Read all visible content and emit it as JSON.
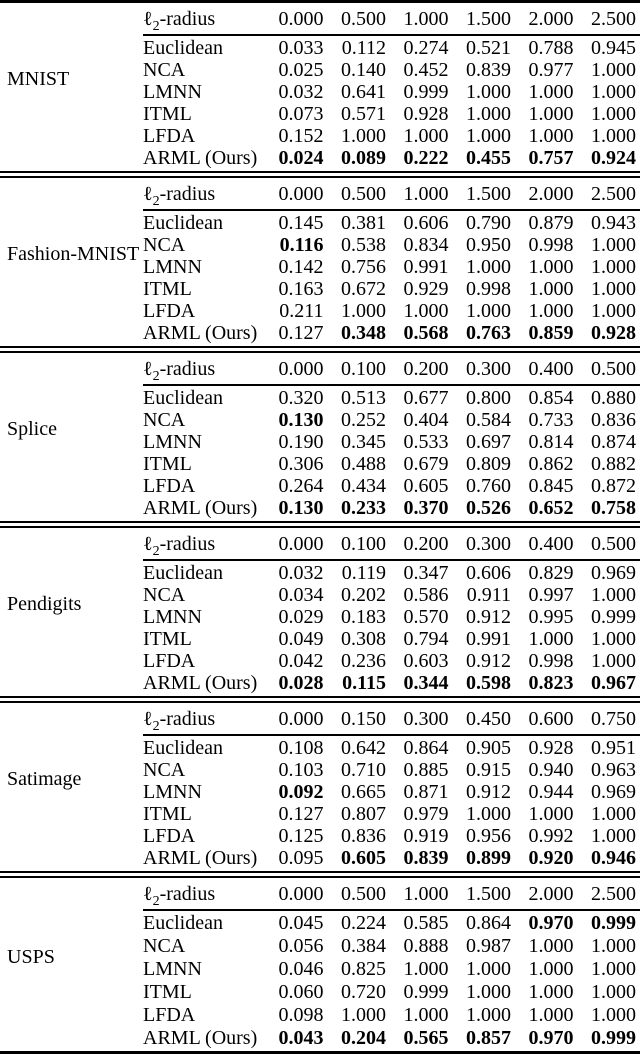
{
  "table": {
    "radius_label": {
      "script_l": "ℓ",
      "subscript": "2",
      "suffix": "-radius"
    },
    "blocks": [
      {
        "dataset": "MNIST",
        "radii": [
          "0.000",
          "0.500",
          "1.000",
          "1.500",
          "2.000",
          "2.500"
        ],
        "rows": [
          {
            "method": "Euclidean",
            "values": [
              "0.033",
              "0.112",
              "0.274",
              "0.521",
              "0.788",
              "0.945"
            ],
            "bold": [
              false,
              false,
              false,
              false,
              false,
              false
            ]
          },
          {
            "method": "NCA",
            "values": [
              "0.025",
              "0.140",
              "0.452",
              "0.839",
              "0.977",
              "1.000"
            ],
            "bold": [
              false,
              false,
              false,
              false,
              false,
              false
            ]
          },
          {
            "method": "LMNN",
            "values": [
              "0.032",
              "0.641",
              "0.999",
              "1.000",
              "1.000",
              "1.000"
            ],
            "bold": [
              false,
              false,
              false,
              false,
              false,
              false
            ]
          },
          {
            "method": "ITML",
            "values": [
              "0.073",
              "0.571",
              "0.928",
              "1.000",
              "1.000",
              "1.000"
            ],
            "bold": [
              false,
              false,
              false,
              false,
              false,
              false
            ]
          },
          {
            "method": "LFDA",
            "values": [
              "0.152",
              "1.000",
              "1.000",
              "1.000",
              "1.000",
              "1.000"
            ],
            "bold": [
              false,
              false,
              false,
              false,
              false,
              false
            ]
          },
          {
            "method": "ARML (Ours)",
            "values": [
              "0.024",
              "0.089",
              "0.222",
              "0.455",
              "0.757",
              "0.924"
            ],
            "bold": [
              true,
              true,
              true,
              true,
              true,
              true
            ]
          }
        ]
      },
      {
        "dataset": "Fashion-MNIST",
        "radii": [
          "0.000",
          "0.500",
          "1.000",
          "1.500",
          "2.000",
          "2.500"
        ],
        "rows": [
          {
            "method": "Euclidean",
            "values": [
              "0.145",
              "0.381",
              "0.606",
              "0.790",
              "0.879",
              "0.943"
            ],
            "bold": [
              false,
              false,
              false,
              false,
              false,
              false
            ]
          },
          {
            "method": "NCA",
            "values": [
              "0.116",
              "0.538",
              "0.834",
              "0.950",
              "0.998",
              "1.000"
            ],
            "bold": [
              true,
              false,
              false,
              false,
              false,
              false
            ]
          },
          {
            "method": "LMNN",
            "values": [
              "0.142",
              "0.756",
              "0.991",
              "1.000",
              "1.000",
              "1.000"
            ],
            "bold": [
              false,
              false,
              false,
              false,
              false,
              false
            ]
          },
          {
            "method": "ITML",
            "values": [
              "0.163",
              "0.672",
              "0.929",
              "0.998",
              "1.000",
              "1.000"
            ],
            "bold": [
              false,
              false,
              false,
              false,
              false,
              false
            ]
          },
          {
            "method": "LFDA",
            "values": [
              "0.211",
              "1.000",
              "1.000",
              "1.000",
              "1.000",
              "1.000"
            ],
            "bold": [
              false,
              false,
              false,
              false,
              false,
              false
            ]
          },
          {
            "method": "ARML (Ours)",
            "values": [
              "0.127",
              "0.348",
              "0.568",
              "0.763",
              "0.859",
              "0.928"
            ],
            "bold": [
              false,
              true,
              true,
              true,
              true,
              true
            ]
          }
        ]
      },
      {
        "dataset": "Splice",
        "radii": [
          "0.000",
          "0.100",
          "0.200",
          "0.300",
          "0.400",
          "0.500"
        ],
        "rows": [
          {
            "method": "Euclidean",
            "values": [
              "0.320",
              "0.513",
              "0.677",
              "0.800",
              "0.854",
              "0.880"
            ],
            "bold": [
              false,
              false,
              false,
              false,
              false,
              false
            ]
          },
          {
            "method": "NCA",
            "values": [
              "0.130",
              "0.252",
              "0.404",
              "0.584",
              "0.733",
              "0.836"
            ],
            "bold": [
              true,
              false,
              false,
              false,
              false,
              false
            ]
          },
          {
            "method": "LMNN",
            "values": [
              "0.190",
              "0.345",
              "0.533",
              "0.697",
              "0.814",
              "0.874"
            ],
            "bold": [
              false,
              false,
              false,
              false,
              false,
              false
            ]
          },
          {
            "method": "ITML",
            "values": [
              "0.306",
              "0.488",
              "0.679",
              "0.809",
              "0.862",
              "0.882"
            ],
            "bold": [
              false,
              false,
              false,
              false,
              false,
              false
            ]
          },
          {
            "method": "LFDA",
            "values": [
              "0.264",
              "0.434",
              "0.605",
              "0.760",
              "0.845",
              "0.872"
            ],
            "bold": [
              false,
              false,
              false,
              false,
              false,
              false
            ]
          },
          {
            "method": "ARML (Ours)",
            "values": [
              "0.130",
              "0.233",
              "0.370",
              "0.526",
              "0.652",
              "0.758"
            ],
            "bold": [
              true,
              true,
              true,
              true,
              true,
              true
            ]
          }
        ]
      },
      {
        "dataset": "Pendigits",
        "radii": [
          "0.000",
          "0.100",
          "0.200",
          "0.300",
          "0.400",
          "0.500"
        ],
        "rows": [
          {
            "method": "Euclidean",
            "values": [
              "0.032",
              "0.119",
              "0.347",
              "0.606",
              "0.829",
              "0.969"
            ],
            "bold": [
              false,
              false,
              false,
              false,
              false,
              false
            ]
          },
          {
            "method": "NCA",
            "values": [
              "0.034",
              "0.202",
              "0.586",
              "0.911",
              "0.997",
              "1.000"
            ],
            "bold": [
              false,
              false,
              false,
              false,
              false,
              false
            ]
          },
          {
            "method": "LMNN",
            "values": [
              "0.029",
              "0.183",
              "0.570",
              "0.912",
              "0.995",
              "0.999"
            ],
            "bold": [
              false,
              false,
              false,
              false,
              false,
              false
            ]
          },
          {
            "method": "ITML",
            "values": [
              "0.049",
              "0.308",
              "0.794",
              "0.991",
              "1.000",
              "1.000"
            ],
            "bold": [
              false,
              false,
              false,
              false,
              false,
              false
            ]
          },
          {
            "method": "LFDA",
            "values": [
              "0.042",
              "0.236",
              "0.603",
              "0.912",
              "0.998",
              "1.000"
            ],
            "bold": [
              false,
              false,
              false,
              false,
              false,
              false
            ]
          },
          {
            "method": "ARML (Ours)",
            "values": [
              "0.028",
              "0.115",
              "0.344",
              "0.598",
              "0.823",
              "0.967"
            ],
            "bold": [
              true,
              true,
              true,
              true,
              true,
              true
            ]
          }
        ]
      },
      {
        "dataset": "Satimage",
        "radii": [
          "0.000",
          "0.150",
          "0.300",
          "0.450",
          "0.600",
          "0.750"
        ],
        "rows": [
          {
            "method": "Euclidean",
            "values": [
              "0.108",
              "0.642",
              "0.864",
              "0.905",
              "0.928",
              "0.951"
            ],
            "bold": [
              false,
              false,
              false,
              false,
              false,
              false
            ]
          },
          {
            "method": "NCA",
            "values": [
              "0.103",
              "0.710",
              "0.885",
              "0.915",
              "0.940",
              "0.963"
            ],
            "bold": [
              false,
              false,
              false,
              false,
              false,
              false
            ]
          },
          {
            "method": "LMNN",
            "values": [
              "0.092",
              "0.665",
              "0.871",
              "0.912",
              "0.944",
              "0.969"
            ],
            "bold": [
              true,
              false,
              false,
              false,
              false,
              false
            ]
          },
          {
            "method": "ITML",
            "values": [
              "0.127",
              "0.807",
              "0.979",
              "1.000",
              "1.000",
              "1.000"
            ],
            "bold": [
              false,
              false,
              false,
              false,
              false,
              false
            ]
          },
          {
            "method": "LFDA",
            "values": [
              "0.125",
              "0.836",
              "0.919",
              "0.956",
              "0.992",
              "1.000"
            ],
            "bold": [
              false,
              false,
              false,
              false,
              false,
              false
            ]
          },
          {
            "method": "ARML (Ours)",
            "values": [
              "0.095",
              "0.605",
              "0.839",
              "0.899",
              "0.920",
              "0.946"
            ],
            "bold": [
              false,
              true,
              true,
              true,
              true,
              true
            ]
          }
        ]
      },
      {
        "dataset": "USPS",
        "radii": [
          "0.000",
          "0.500",
          "1.000",
          "1.500",
          "2.000",
          "2.500"
        ],
        "rows": [
          {
            "method": "Euclidean",
            "values": [
              "0.045",
              "0.224",
              "0.585",
              "0.864",
              "0.970",
              "0.999"
            ],
            "bold": [
              false,
              false,
              false,
              false,
              true,
              true
            ]
          },
          {
            "method": "NCA",
            "values": [
              "0.056",
              "0.384",
              "0.888",
              "0.987",
              "1.000",
              "1.000"
            ],
            "bold": [
              false,
              false,
              false,
              false,
              false,
              false
            ]
          },
          {
            "method": "LMNN",
            "values": [
              "0.046",
              "0.825",
              "1.000",
              "1.000",
              "1.000",
              "1.000"
            ],
            "bold": [
              false,
              false,
              false,
              false,
              false,
              false
            ]
          },
          {
            "method": "ITML",
            "values": [
              "0.060",
              "0.720",
              "0.999",
              "1.000",
              "1.000",
              "1.000"
            ],
            "bold": [
              false,
              false,
              false,
              false,
              false,
              false
            ]
          },
          {
            "method": "LFDA",
            "values": [
              "0.098",
              "1.000",
              "1.000",
              "1.000",
              "1.000",
              "1.000"
            ],
            "bold": [
              false,
              false,
              false,
              false,
              false,
              false
            ]
          },
          {
            "method": "ARML (Ours)",
            "values": [
              "0.043",
              "0.204",
              "0.565",
              "0.857",
              "0.970",
              "0.999"
            ],
            "bold": [
              true,
              true,
              true,
              true,
              true,
              true
            ]
          }
        ]
      }
    ]
  }
}
